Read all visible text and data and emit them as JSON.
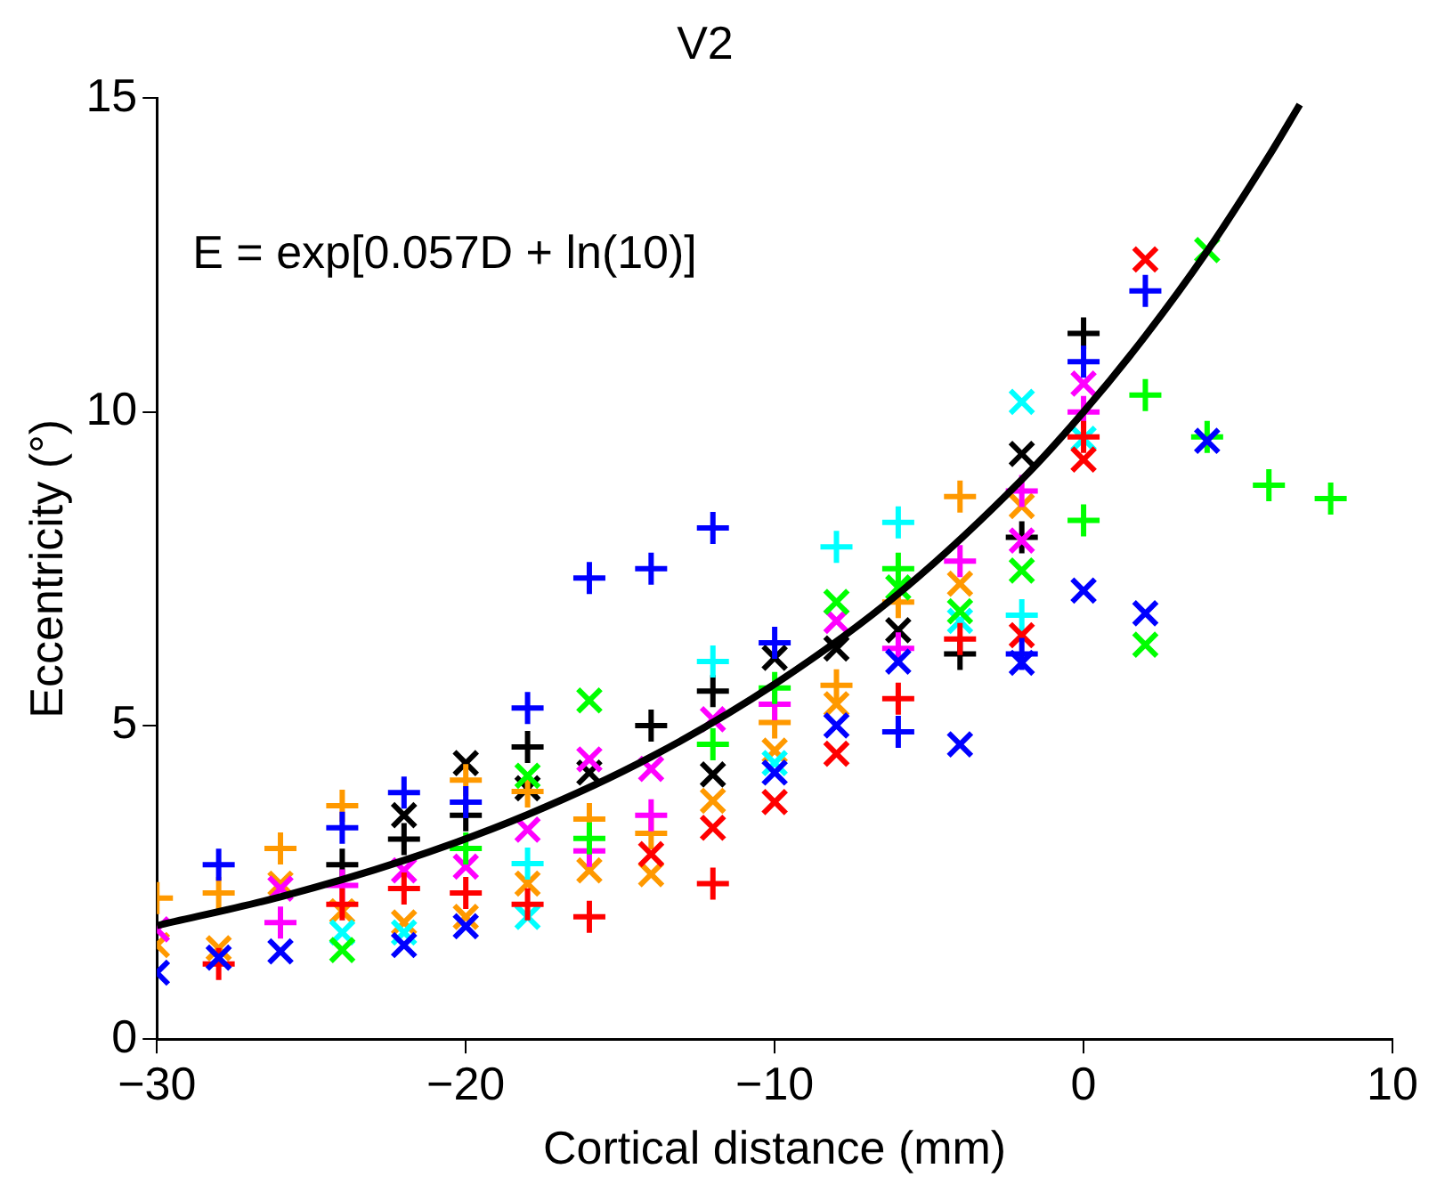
{
  "chart_data": {
    "type": "scatter",
    "title": "V2",
    "xlabel": "Cortical distance (mm)",
    "ylabel": "Eccentricity (°)",
    "xlim": [
      -30,
      10
    ],
    "xticks": [
      {
        "value": -30,
        "label": "−30"
      },
      {
        "value": -20,
        "label": "−20"
      },
      {
        "value": -10,
        "label": "−10"
      },
      0,
      10
    ],
    "ylim": [
      0,
      15
    ],
    "yticks": [
      0,
      5,
      10,
      15
    ],
    "grid": false,
    "legend": false,
    "annotations": [
      "E = exp[0.057D + ln(10)]"
    ],
    "series": [
      {
        "color": "#0000ff",
        "marker": "cross",
        "x": [
          -28,
          -24,
          -22,
          -20,
          -18,
          -16,
          -14,
          -12,
          -10,
          -6,
          -2,
          0,
          2
        ],
        "values": [
          2.78,
          3.37,
          3.93,
          3.78,
          5.28,
          7.35,
          7.5,
          8.15,
          6.32,
          4.9,
          6.14,
          10.8,
          11.93
        ]
      },
      {
        "color": "#0000ff",
        "marker": "x",
        "x": [
          -30,
          -28,
          -26,
          -22,
          -20,
          -10,
          -8,
          -6,
          -4,
          -2,
          0,
          2,
          4
        ],
        "values": [
          1.06,
          1.3,
          1.4,
          1.5,
          1.8,
          4.25,
          5.0,
          6.02,
          4.7,
          6.0,
          7.15,
          6.79,
          9.54
        ]
      },
      {
        "color": "#ff0000",
        "marker": "cross",
        "x": [
          -28,
          -24,
          -22,
          -20,
          -18,
          -16,
          -12,
          -6,
          -4,
          0
        ],
        "values": [
          1.2,
          2.15,
          2.4,
          2.33,
          2.15,
          1.95,
          2.48,
          5.43,
          6.38,
          9.6
        ]
      },
      {
        "color": "#ff0000",
        "marker": "x",
        "x": [
          -14,
          -12,
          -10,
          -8,
          -2,
          0,
          2
        ],
        "values": [
          2.95,
          3.37,
          3.78,
          4.55,
          6.44,
          9.24,
          12.43
        ]
      },
      {
        "color": "#00ff00",
        "marker": "cross",
        "x": [
          -20,
          -16,
          -12,
          -10,
          -6,
          0,
          2,
          4,
          6,
          8
        ],
        "values": [
          3.04,
          3.2,
          4.7,
          5.6,
          7.5,
          8.27,
          10.27,
          9.6,
          8.83,
          8.62
        ]
      },
      {
        "color": "#00ff00",
        "marker": "x",
        "x": [
          -24,
          -18,
          -16,
          -8,
          -6,
          -4,
          -2,
          2,
          4
        ],
        "values": [
          1.42,
          4.2,
          5.4,
          6.97,
          7.2,
          6.82,
          7.47,
          6.29,
          12.58
        ]
      },
      {
        "color": "#00ffff",
        "marker": "cross",
        "x": [
          -18,
          -12,
          -8,
          -6,
          -2
        ],
        "values": [
          2.8,
          6.02,
          7.85,
          8.24,
          6.76
        ]
      },
      {
        "color": "#00ffff",
        "marker": "x",
        "x": [
          -24,
          -22,
          -18,
          -10,
          -4,
          -2,
          0
        ],
        "values": [
          1.7,
          1.7,
          1.95,
          4.4,
          6.67,
          10.16,
          9.57
        ]
      },
      {
        "color": "#ff00ff",
        "marker": "cross",
        "x": [
          -26,
          -24,
          -16,
          -14,
          -10,
          -6,
          -4,
          -2,
          0
        ],
        "values": [
          1.86,
          2.45,
          3.0,
          3.57,
          5.34,
          6.23,
          7.62,
          8.74,
          10.0
        ]
      },
      {
        "color": "#ff00ff",
        "marker": "x",
        "x": [
          -30,
          -26,
          -22,
          -20,
          -18,
          -16,
          -14,
          -12,
          -8,
          -2,
          0
        ],
        "values": [
          1.75,
          2.4,
          2.69,
          2.75,
          3.34,
          4.46,
          4.31,
          5.1,
          6.67,
          7.95,
          10.45
        ]
      },
      {
        "color": "#ff9900",
        "marker": "cross",
        "x": [
          -30,
          -28,
          -26,
          -24,
          -20,
          -18,
          -16,
          -14,
          -10,
          -8,
          -6,
          -4
        ],
        "values": [
          2.25,
          2.33,
          3.04,
          3.72,
          4.13,
          3.95,
          3.51,
          3.28,
          5.05,
          5.64,
          6.97,
          8.65
        ]
      },
      {
        "color": "#ff9900",
        "marker": "x",
        "x": [
          -30,
          -28,
          -26,
          -24,
          -22,
          -20,
          -18,
          -16,
          -14,
          -12,
          -10,
          -8,
          -4,
          -2
        ],
        "values": [
          1.5,
          1.45,
          2.48,
          2.04,
          1.86,
          1.95,
          2.48,
          2.69,
          2.63,
          3.8,
          4.6,
          5.34,
          7.26,
          8.5
        ]
      },
      {
        "color": "#000000",
        "marker": "cross",
        "x": [
          -24,
          -22,
          -20,
          -18,
          -14,
          -12,
          -4,
          -2,
          0
        ],
        "values": [
          2.78,
          3.19,
          3.57,
          4.66,
          5.0,
          5.55,
          6.14,
          8.0,
          11.25
        ]
      },
      {
        "color": "#000000",
        "marker": "x",
        "x": [
          -22,
          -20,
          -18,
          -16,
          -12,
          -10,
          -8,
          -6,
          -2
        ],
        "values": [
          3.57,
          4.4,
          4.0,
          4.25,
          4.22,
          6.08,
          6.23,
          6.52,
          9.33
        ]
      },
      {
        "type": "line",
        "color": "#000000",
        "marker": "none",
        "x": [
          -30,
          -26,
          -22,
          -18,
          -14,
          -10,
          -6,
          -2,
          0,
          2,
          4,
          6,
          7
        ],
        "values": [
          1.81,
          2.27,
          2.85,
          3.58,
          4.5,
          5.66,
          7.1,
          8.92,
          10,
          11.21,
          12.56,
          14.08,
          14.9
        ]
      }
    ]
  }
}
